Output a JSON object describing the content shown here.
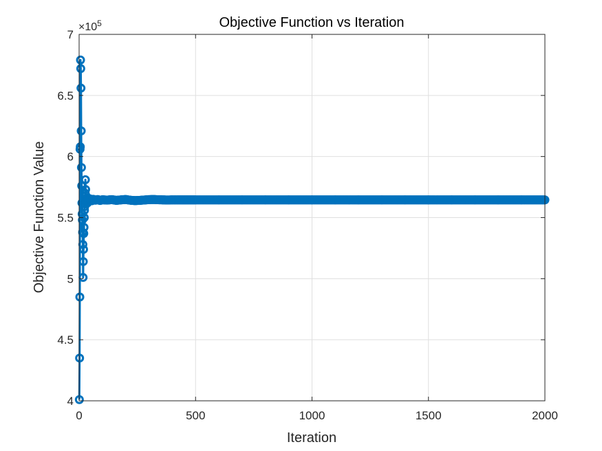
{
  "chart_data": {
    "type": "line",
    "title": "Objective Function vs Iteration",
    "xlabel": "Iteration",
    "ylabel": "Objective Function Value",
    "xlim": [
      0,
      2000
    ],
    "ylim": [
      400000,
      700000
    ],
    "x_ticks": [
      0,
      500,
      1000,
      1500,
      2000
    ],
    "y_ticks": [
      400000,
      450000,
      500000,
      550000,
      600000,
      650000,
      700000
    ],
    "x_tick_labels": [
      "0",
      "500",
      "1000",
      "1500",
      "2000"
    ],
    "y_tick_labels": [
      "4",
      "4.5",
      "5",
      "5.5",
      "6",
      "6.5",
      "7"
    ],
    "y_exponent_base": "×10",
    "y_exponent_power": "5",
    "grid": true,
    "marker": "circle",
    "series": [
      {
        "color": "#0072BD",
        "x": [
          1,
          2,
          3,
          4,
          5,
          6,
          7,
          8,
          9,
          10,
          11,
          12,
          13,
          14,
          15,
          16,
          17,
          18,
          19,
          20,
          21,
          22,
          23,
          24,
          25,
          26,
          27,
          28,
          29,
          30,
          32,
          34,
          36,
          38,
          40,
          45,
          50,
          55,
          60,
          70,
          80,
          90,
          100,
          120,
          140,
          160,
          180,
          200,
          220,
          240,
          260,
          280,
          300,
          320,
          340,
          360,
          380,
          400,
          450,
          500,
          600,
          700,
          800,
          900,
          1000,
          1100,
          1200,
          1300,
          1400,
          1500,
          1600,
          1700,
          1800,
          1900,
          2000
        ],
        "y": [
          401000,
          435000,
          485000,
          606000,
          608000,
          679000,
          672000,
          656000,
          621000,
          591000,
          576000,
          562000,
          553000,
          548000,
          538000,
          528000,
          501000,
          514000,
          524000,
          537000,
          542000,
          550000,
          556000,
          559000,
          565000,
          570000,
          581000,
          573000,
          568000,
          563000,
          566000,
          564000,
          562000,
          565000,
          563500,
          565500,
          564500,
          563800,
          565000,
          564200,
          564800,
          564000,
          564600,
          564300,
          564700,
          564100,
          564500,
          564800,
          564200,
          563900,
          564100,
          564400,
          564700,
          564800,
          564600,
          564500,
          564400,
          564500,
          564500,
          564500,
          564500,
          564500,
          564500,
          564500,
          564500,
          564500,
          564500,
          564500,
          564500,
          564500,
          564500,
          564500,
          564500,
          564500,
          564500
        ]
      }
    ]
  }
}
